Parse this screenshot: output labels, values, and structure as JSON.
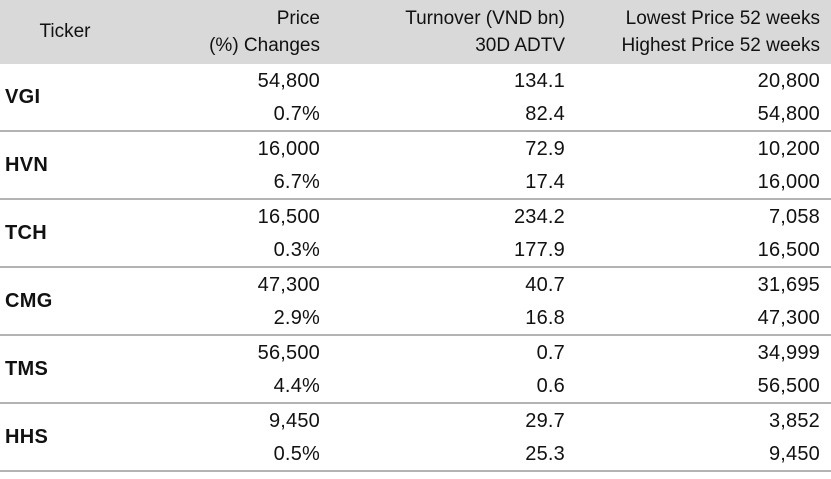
{
  "chart_data": {
    "type": "table",
    "header": {
      "col1": {
        "line1": "Ticker"
      },
      "col2": {
        "line1": "Price",
        "line2": "(%) Changes"
      },
      "col3": {
        "line1": "Turnover (VND bn)",
        "line2": "30D ADTV"
      },
      "col4": {
        "line1": "Lowest Price 52 weeks",
        "line2": "Highest Price 52 weeks"
      }
    },
    "rows": [
      {
        "ticker": "VGI",
        "price": "54,800",
        "change_pct": "0.7%",
        "turnover": "134.1",
        "adtv_30d": "82.4",
        "low_52w": "20,800",
        "high_52w": "54,800"
      },
      {
        "ticker": "HVN",
        "price": "16,000",
        "change_pct": "6.7%",
        "turnover": "72.9",
        "adtv_30d": "17.4",
        "low_52w": "10,200",
        "high_52w": "16,000"
      },
      {
        "ticker": "TCH",
        "price": "16,500",
        "change_pct": "0.3%",
        "turnover": "234.2",
        "adtv_30d": "177.9",
        "low_52w": "7,058",
        "high_52w": "16,500"
      },
      {
        "ticker": "CMG",
        "price": "47,300",
        "change_pct": "2.9%",
        "turnover": "40.7",
        "adtv_30d": "16.8",
        "low_52w": "31,695",
        "high_52w": "47,300"
      },
      {
        "ticker": "TMS",
        "price": "56,500",
        "change_pct": "4.4%",
        "turnover": "0.7",
        "adtv_30d": "0.6",
        "low_52w": "34,999",
        "high_52w": "56,500"
      },
      {
        "ticker": "HHS",
        "price": "9,450",
        "change_pct": "0.5%",
        "turnover": "29.7",
        "adtv_30d": "25.3",
        "low_52w": "3,852",
        "high_52w": "9,450"
      }
    ]
  },
  "colors": {
    "header_bg": "#d9d9d9",
    "row_divider": "#b3b3b3",
    "text": "#111111",
    "background": "#ffffff"
  }
}
